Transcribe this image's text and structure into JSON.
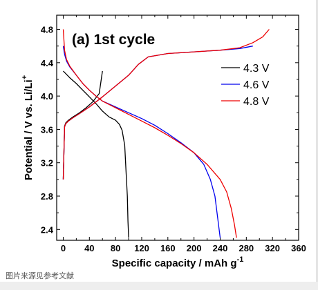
{
  "caption": "图片来源见参考文献",
  "chart_data": {
    "type": "line",
    "title": "(a) 1st cycle",
    "xlabel": "Specific capacity / mAh g",
    "xlabel_sup": "-1",
    "ylabel": "Potential / V vs. Li/Li",
    "ylabel_sup": "+",
    "xlim": [
      -10,
      360
    ],
    "ylim": [
      2.27,
      4.97
    ],
    "xticks": [
      0,
      40,
      80,
      120,
      160,
      200,
      240,
      280,
      320,
      360
    ],
    "yticks": [
      2.4,
      2.8,
      3.2,
      3.6,
      4.0,
      4.4,
      4.8
    ],
    "grid": false,
    "legend_position": "right",
    "series": [
      {
        "name": "4.3 V",
        "color": "#000000",
        "charge": {
          "x": [
            0,
            2,
            4,
            8,
            15,
            25,
            35,
            45,
            55,
            60
          ],
          "y": [
            3.0,
            3.64,
            3.68,
            3.71,
            3.75,
            3.8,
            3.86,
            3.93,
            4.03,
            4.3
          ]
        },
        "discharge": {
          "x": [
            0,
            10,
            20,
            30,
            40,
            50,
            60,
            70,
            80,
            86,
            90,
            94,
            96,
            98,
            99,
            100
          ],
          "y": [
            4.3,
            4.22,
            4.15,
            4.07,
            3.99,
            3.91,
            3.82,
            3.75,
            3.71,
            3.66,
            3.59,
            3.41,
            3.1,
            2.8,
            2.5,
            2.3
          ]
        }
      },
      {
        "name": "4.6 V",
        "color": "#0000ee",
        "charge": {
          "x": [
            0,
            2,
            4,
            8,
            15,
            25,
            40,
            60,
            80,
            100,
            115,
            130,
            160,
            200,
            240,
            270,
            290
          ],
          "y": [
            3.0,
            3.63,
            3.67,
            3.7,
            3.74,
            3.79,
            3.87,
            3.99,
            4.12,
            4.25,
            4.38,
            4.47,
            4.51,
            4.53,
            4.55,
            4.57,
            4.6
          ]
        },
        "discharge": {
          "x": [
            0,
            2,
            5,
            10,
            20,
            30,
            40,
            50,
            60,
            80,
            100,
            120,
            140,
            160,
            180,
            200,
            215,
            225,
            232,
            236,
            240
          ],
          "y": [
            4.6,
            4.5,
            4.42,
            4.35,
            4.25,
            4.15,
            4.07,
            4.0,
            3.94,
            3.87,
            3.8,
            3.73,
            3.65,
            3.55,
            3.44,
            3.32,
            3.18,
            3.0,
            2.8,
            2.55,
            2.3
          ]
        }
      },
      {
        "name": "4.8 V",
        "color": "#ee0000",
        "charge": {
          "x": [
            0,
            2,
            4,
            8,
            15,
            25,
            40,
            60,
            80,
            100,
            115,
            130,
            160,
            200,
            240,
            270,
            290,
            305,
            315
          ],
          "y": [
            3.0,
            3.63,
            3.67,
            3.7,
            3.74,
            3.79,
            3.87,
            3.99,
            4.12,
            4.25,
            4.38,
            4.47,
            4.51,
            4.53,
            4.55,
            4.58,
            4.64,
            4.71,
            4.8
          ]
        },
        "discharge": {
          "x": [
            0,
            2,
            5,
            10,
            20,
            30,
            40,
            50,
            60,
            80,
            100,
            120,
            140,
            160,
            180,
            200,
            220,
            240,
            250,
            257,
            262,
            265
          ],
          "y": [
            4.8,
            4.55,
            4.44,
            4.36,
            4.25,
            4.15,
            4.07,
            4.0,
            3.94,
            3.86,
            3.78,
            3.7,
            3.62,
            3.53,
            3.43,
            3.32,
            3.18,
            3.0,
            2.85,
            2.65,
            2.45,
            2.3
          ]
        }
      }
    ]
  }
}
